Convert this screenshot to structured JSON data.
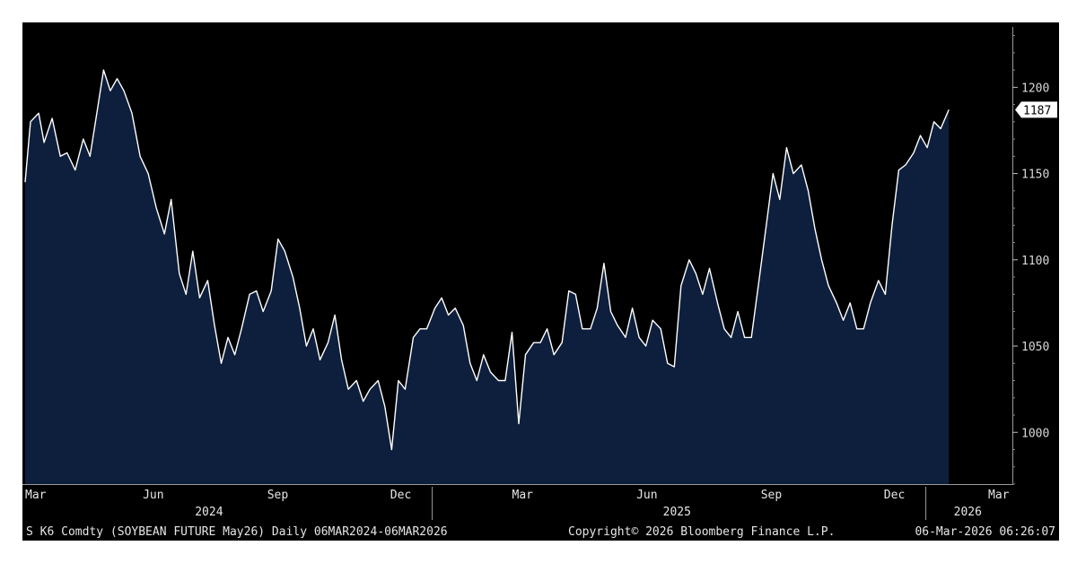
{
  "chart_data": {
    "type": "area",
    "ylim": [
      970,
      1235
    ],
    "yticks": [
      1000,
      1050,
      1100,
      1150,
      1200
    ],
    "last_value": "1187",
    "x_month_labels": [
      {
        "label": "Mar",
        "date": "2024-03-06"
      },
      {
        "label": "Jun",
        "date": "2024-06-01"
      },
      {
        "label": "Sep",
        "date": "2024-09-01"
      },
      {
        "label": "Dec",
        "date": "2024-12-01"
      },
      {
        "label": "Mar",
        "date": "2025-03-01"
      },
      {
        "label": "Jun",
        "date": "2025-06-01"
      },
      {
        "label": "Sep",
        "date": "2025-09-01"
      },
      {
        "label": "Dec",
        "date": "2025-12-01"
      },
      {
        "label": "Mar",
        "date": "2026-03-06"
      }
    ],
    "x_year_labels": [
      {
        "label": "2024",
        "date": "2024-07-20"
      },
      {
        "label": "2025",
        "date": "2025-07-01"
      },
      {
        "label": "2026",
        "date": "2026-02-01"
      }
    ],
    "year_separators": [
      "2025-01-01",
      "2026-01-01"
    ],
    "series": [
      {
        "line_color": "#ffffff",
        "fill_color": "#0d1f3c",
        "points": [
          [
            "2024-03-06",
            1145
          ],
          [
            "2024-03-10",
            1180
          ],
          [
            "2024-03-16",
            1185
          ],
          [
            "2024-03-20",
            1168
          ],
          [
            "2024-03-26",
            1182
          ],
          [
            "2024-04-01",
            1160
          ],
          [
            "2024-04-06",
            1162
          ],
          [
            "2024-04-12",
            1152
          ],
          [
            "2024-04-18",
            1170
          ],
          [
            "2024-04-23",
            1160
          ],
          [
            "2024-04-28",
            1185
          ],
          [
            "2024-05-03",
            1210
          ],
          [
            "2024-05-08",
            1198
          ],
          [
            "2024-05-13",
            1205
          ],
          [
            "2024-05-18",
            1198
          ],
          [
            "2024-05-24",
            1185
          ],
          [
            "2024-05-30",
            1160
          ],
          [
            "2024-06-05",
            1150
          ],
          [
            "2024-06-11",
            1130
          ],
          [
            "2024-06-17",
            1115
          ],
          [
            "2024-06-22",
            1135
          ],
          [
            "2024-06-28",
            1092
          ],
          [
            "2024-07-03",
            1080
          ],
          [
            "2024-07-08",
            1105
          ],
          [
            "2024-07-13",
            1078
          ],
          [
            "2024-07-19",
            1088
          ],
          [
            "2024-07-24",
            1062
          ],
          [
            "2024-07-29",
            1040
          ],
          [
            "2024-08-03",
            1055
          ],
          [
            "2024-08-08",
            1045
          ],
          [
            "2024-08-13",
            1060
          ],
          [
            "2024-08-19",
            1080
          ],
          [
            "2024-08-24",
            1082
          ],
          [
            "2024-08-29",
            1070
          ],
          [
            "2024-09-04",
            1082
          ],
          [
            "2024-09-09",
            1112
          ],
          [
            "2024-09-14",
            1105
          ],
          [
            "2024-09-20",
            1090
          ],
          [
            "2024-09-25",
            1072
          ],
          [
            "2024-09-30",
            1050
          ],
          [
            "2024-10-05",
            1060
          ],
          [
            "2024-10-10",
            1042
          ],
          [
            "2024-10-16",
            1052
          ],
          [
            "2024-10-21",
            1068
          ],
          [
            "2024-10-26",
            1042
          ],
          [
            "2024-10-31",
            1025
          ],
          [
            "2024-11-06",
            1030
          ],
          [
            "2024-11-11",
            1018
          ],
          [
            "2024-11-16",
            1025
          ],
          [
            "2024-11-22",
            1030
          ],
          [
            "2024-11-27",
            1015
          ],
          [
            "2024-12-02",
            990
          ],
          [
            "2024-12-07",
            1030
          ],
          [
            "2024-12-12",
            1025
          ],
          [
            "2024-12-18",
            1055
          ],
          [
            "2024-12-23",
            1060
          ],
          [
            "2024-12-28",
            1060
          ],
          [
            "2025-01-03",
            1072
          ],
          [
            "2025-01-08",
            1078
          ],
          [
            "2025-01-13",
            1068
          ],
          [
            "2025-01-18",
            1072
          ],
          [
            "2025-01-24",
            1062
          ],
          [
            "2025-01-29",
            1040
          ],
          [
            "2025-02-03",
            1030
          ],
          [
            "2025-02-08",
            1045
          ],
          [
            "2025-02-13",
            1035
          ],
          [
            "2025-02-19",
            1030
          ],
          [
            "2025-02-24",
            1030
          ],
          [
            "2025-03-01",
            1058
          ],
          [
            "2025-03-06",
            1005
          ],
          [
            "2025-03-11",
            1045
          ],
          [
            "2025-03-17",
            1052
          ],
          [
            "2025-03-22",
            1052
          ],
          [
            "2025-03-27",
            1060
          ],
          [
            "2025-04-01",
            1045
          ],
          [
            "2025-04-07",
            1052
          ],
          [
            "2025-04-12",
            1082
          ],
          [
            "2025-04-17",
            1080
          ],
          [
            "2025-04-22",
            1060
          ],
          [
            "2025-04-28",
            1060
          ],
          [
            "2025-05-03",
            1072
          ],
          [
            "2025-05-08",
            1098
          ],
          [
            "2025-05-13",
            1070
          ],
          [
            "2025-05-18",
            1062
          ],
          [
            "2025-05-24",
            1055
          ],
          [
            "2025-05-29",
            1072
          ],
          [
            "2025-06-03",
            1055
          ],
          [
            "2025-06-08",
            1050
          ],
          [
            "2025-06-13",
            1065
          ],
          [
            "2025-06-19",
            1060
          ],
          [
            "2025-06-24",
            1040
          ],
          [
            "2025-06-29",
            1038
          ],
          [
            "2025-07-04",
            1085
          ],
          [
            "2025-07-10",
            1100
          ],
          [
            "2025-07-15",
            1092
          ],
          [
            "2025-07-20",
            1080
          ],
          [
            "2025-07-25",
            1095
          ],
          [
            "2025-07-31",
            1075
          ],
          [
            "2025-08-05",
            1060
          ],
          [
            "2025-08-10",
            1055
          ],
          [
            "2025-08-15",
            1070
          ],
          [
            "2025-08-20",
            1055
          ],
          [
            "2025-08-25",
            1055
          ],
          [
            "2025-08-31",
            1090
          ],
          [
            "2025-09-05",
            1120
          ],
          [
            "2025-09-10",
            1150
          ],
          [
            "2025-09-15",
            1135
          ],
          [
            "2025-09-20",
            1165
          ],
          [
            "2025-09-25",
            1150
          ],
          [
            "2025-10-01",
            1155
          ],
          [
            "2025-10-06",
            1140
          ],
          [
            "2025-10-11",
            1118
          ],
          [
            "2025-10-16",
            1100
          ],
          [
            "2025-10-21",
            1085
          ],
          [
            "2025-10-27",
            1075
          ],
          [
            "2025-11-01",
            1065
          ],
          [
            "2025-11-06",
            1075
          ],
          [
            "2025-11-11",
            1060
          ],
          [
            "2025-11-16",
            1060
          ],
          [
            "2025-11-21",
            1075
          ],
          [
            "2025-11-27",
            1088
          ],
          [
            "2025-12-02",
            1080
          ],
          [
            "2025-12-07",
            1120
          ],
          [
            "2025-12-12",
            1152
          ],
          [
            "2025-12-17",
            1155
          ],
          [
            "2025-12-23",
            1162
          ],
          [
            "2025-12-28",
            1172
          ],
          [
            "2026-01-02",
            1165
          ],
          [
            "2026-01-07",
            1180
          ],
          [
            "2026-01-12",
            1176
          ],
          [
            "2026-01-18",
            1187
          ]
        ]
      }
    ]
  },
  "footer": {
    "ticker": "S K6 Comdty (SOYBEAN FUTURE   May26) Daily 06MAR2024-06MAR2026",
    "copyright": "Copyright© 2026 Bloomberg Finance L.P.",
    "timestamp": "06-Mar-2026 06:26:07"
  },
  "colors": {
    "background": "#000000",
    "area_fill": "#0d1f3c",
    "line": "#ffffff",
    "text": "#e6e6e6",
    "last_label_bg": "#ffffff"
  }
}
